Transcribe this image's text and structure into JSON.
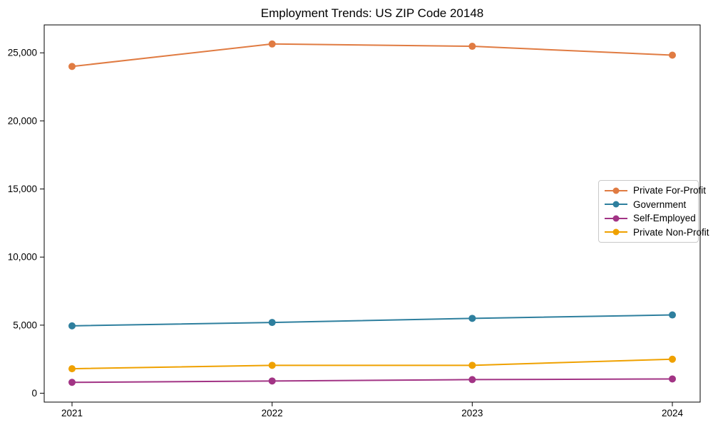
{
  "chart_data": {
    "type": "line",
    "title": "Employment Trends: US ZIP Code 20148",
    "xlabel": "",
    "ylabel": "",
    "categories": [
      "2021",
      "2022",
      "2023",
      "2024"
    ],
    "series": [
      {
        "name": "Private For-Profit",
        "color": "#e07b42",
        "values": [
          24000,
          25650,
          25480,
          24830
        ]
      },
      {
        "name": "Government",
        "color": "#2e7f9e",
        "values": [
          4950,
          5200,
          5500,
          5750
        ]
      },
      {
        "name": "Self-Employed",
        "color": "#a23485",
        "values": [
          800,
          900,
          1000,
          1050
        ]
      },
      {
        "name": "Private Non-Profit",
        "color": "#efa100",
        "values": [
          1800,
          2050,
          2050,
          2500
        ]
      }
    ],
    "ylim": [
      -650,
      27050
    ],
    "y_ticks": [
      0,
      5000,
      10000,
      15000,
      20000,
      25000
    ],
    "y_tick_labels": [
      "0",
      "5,000",
      "10,000",
      "15,000",
      "20,000",
      "25,000"
    ],
    "grid": false,
    "legend_position": "center-right",
    "marker": "circle",
    "axis_color": "#000000"
  }
}
